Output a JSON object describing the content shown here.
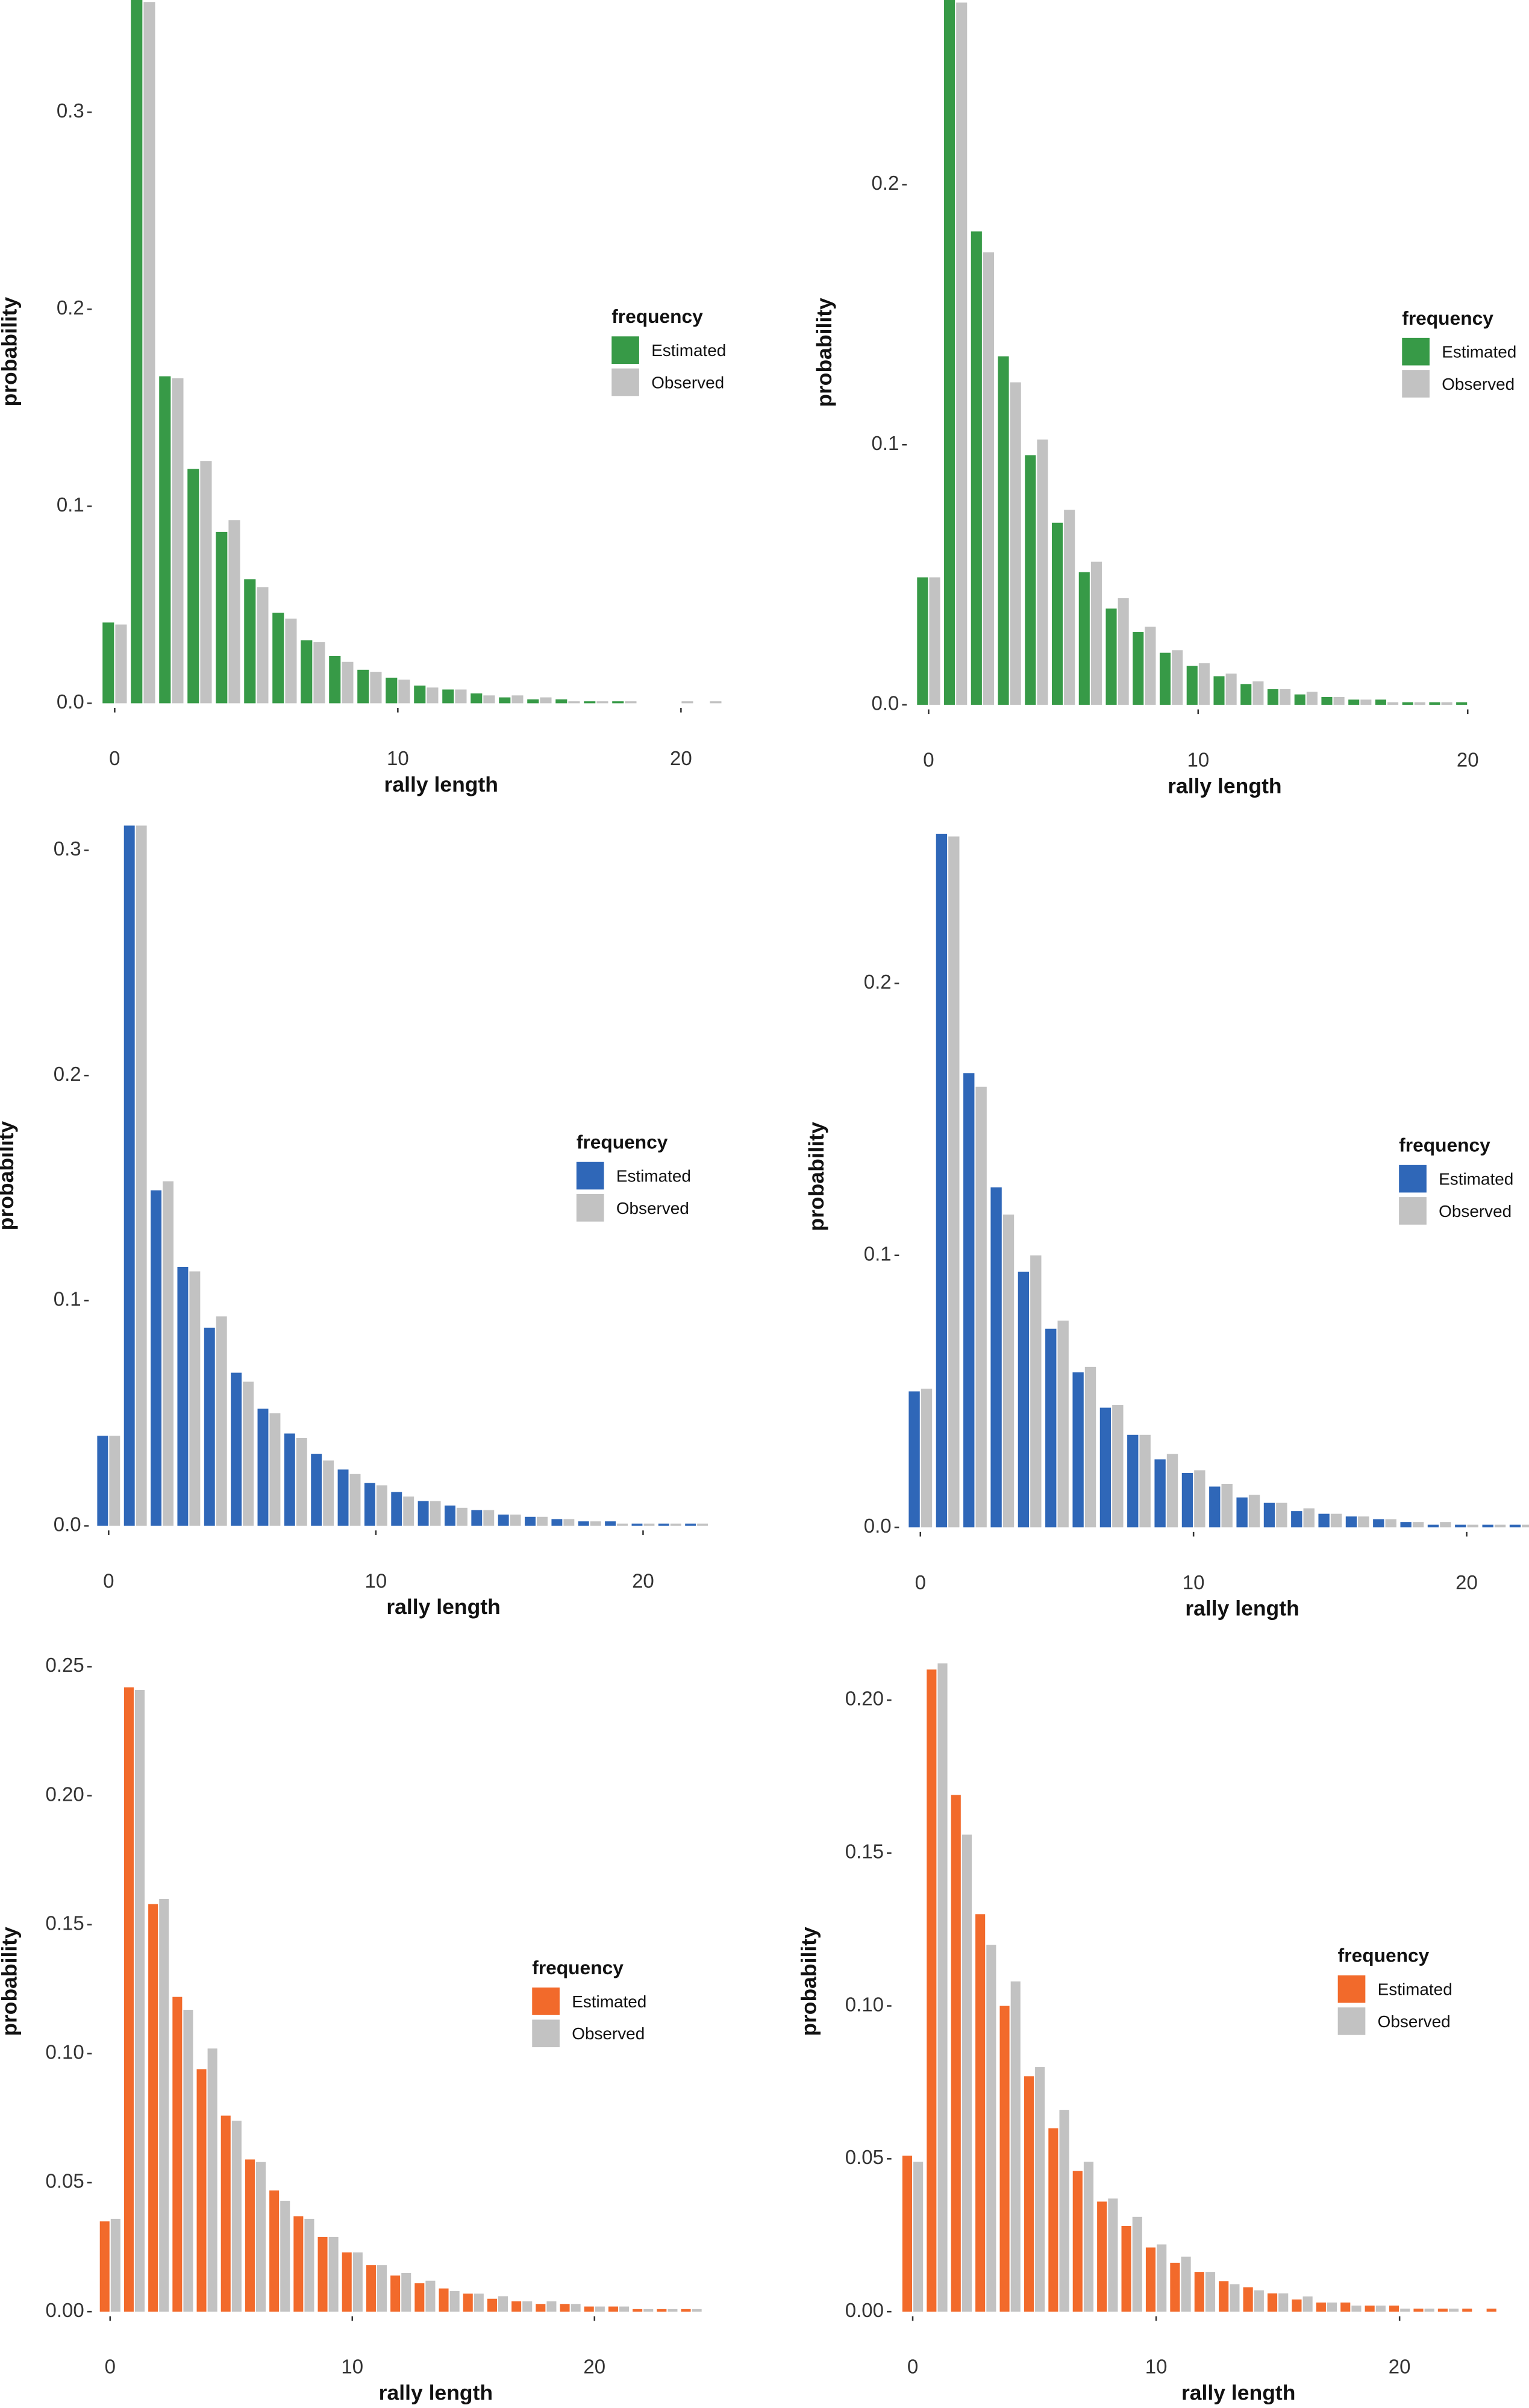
{
  "chart_data": [
    {
      "type": "bar",
      "xlabel": "rally length",
      "ylabel": "probability",
      "legend_title": "frequency",
      "legend": "right",
      "x": [
        0,
        1,
        2,
        3,
        4,
        5,
        6,
        7,
        8,
        9,
        10,
        11,
        12,
        13,
        14,
        15,
        16,
        17,
        18,
        19,
        20,
        21
      ],
      "series": [
        {
          "name": "Estimated",
          "color": "#379a47",
          "values": [
            0.041,
            0.357,
            0.166,
            0.119,
            0.087,
            0.063,
            0.046,
            0.032,
            0.024,
            0.017,
            0.013,
            0.009,
            0.007,
            0.005,
            0.003,
            0.002,
            0.002,
            0.001,
            0.001,
            0.0,
            0.0,
            0.0
          ]
        },
        {
          "name": "Observed",
          "color": "#c2c2c2",
          "values": [
            0.04,
            0.356,
            0.165,
            0.123,
            0.093,
            0.059,
            0.043,
            0.031,
            0.021,
            0.016,
            0.012,
            0.008,
            0.007,
            0.004,
            0.004,
            0.003,
            0.001,
            0.001,
            0.001,
            0.0,
            0.001,
            0.001
          ]
        }
      ],
      "xlim": [
        -0.7,
        21.6
      ],
      "ylim": [
        0,
        0.357
      ],
      "xticks": [
        0,
        10,
        20
      ],
      "yticks": [
        {
          "value": 0,
          "label": "0.0"
        },
        0.1,
        0.2,
        0.3
      ]
    },
    {
      "type": "bar",
      "xlabel": "rally length",
      "ylabel": "probability",
      "legend_title": "frequency",
      "legend": "right",
      "x": [
        0,
        1,
        2,
        3,
        4,
        5,
        6,
        7,
        8,
        9,
        10,
        11,
        12,
        13,
        14,
        15,
        16,
        17,
        18,
        19,
        20
      ],
      "series": [
        {
          "name": "Estimated",
          "color": "#379a47",
          "values": [
            0.049,
            0.271,
            0.182,
            0.134,
            0.096,
            0.07,
            0.051,
            0.037,
            0.028,
            0.02,
            0.015,
            0.011,
            0.008,
            0.006,
            0.004,
            0.003,
            0.002,
            0.002,
            0.001,
            0.001,
            0.001
          ]
        },
        {
          "name": "Observed",
          "color": "#c2c2c2",
          "values": [
            0.049,
            0.27,
            0.174,
            0.124,
            0.102,
            0.075,
            0.055,
            0.041,
            0.03,
            0.021,
            0.016,
            0.012,
            0.009,
            0.006,
            0.005,
            0.003,
            0.002,
            0.001,
            0.001,
            0.001,
            0.0
          ]
        }
      ],
      "xlim": [
        -0.7,
        20.4
      ],
      "ylim": [
        0,
        0.271
      ],
      "xticks": [
        0,
        10,
        20
      ],
      "yticks": [
        {
          "value": 0,
          "label": "0.0"
        },
        0.1,
        0.2
      ]
    },
    {
      "type": "bar",
      "xlabel": "rally length",
      "ylabel": "probability",
      "legend_title": "frequency",
      "legend": "right",
      "x": [
        0,
        1,
        2,
        3,
        4,
        5,
        6,
        7,
        8,
        9,
        10,
        11,
        12,
        13,
        14,
        15,
        16,
        17,
        18,
        19,
        20,
        21,
        22,
        23
      ],
      "series": [
        {
          "name": "Estimated",
          "color": "#2f67b8",
          "values": [
            0.04,
            0.311,
            0.149,
            0.115,
            0.088,
            0.068,
            0.052,
            0.041,
            0.032,
            0.025,
            0.019,
            0.015,
            0.011,
            0.009,
            0.007,
            0.005,
            0.004,
            0.003,
            0.002,
            0.002,
            0.001,
            0.001,
            0.001,
            0.0
          ]
        },
        {
          "name": "Observed",
          "color": "#c2c2c2",
          "values": [
            0.04,
            0.311,
            0.153,
            0.113,
            0.093,
            0.064,
            0.05,
            0.039,
            0.029,
            0.023,
            0.018,
            0.013,
            0.011,
            0.008,
            0.007,
            0.005,
            0.004,
            0.003,
            0.002,
            0.001,
            0.001,
            0.001,
            0.001,
            0.0
          ]
        }
      ],
      "xlim": [
        -0.63,
        23.4
      ],
      "ylim": [
        0,
        0.311
      ],
      "xticks": [
        0,
        10,
        20
      ],
      "yticks": [
        {
          "value": 0,
          "label": "0.0"
        },
        0.1,
        0.2,
        0.3
      ]
    },
    {
      "type": "bar",
      "xlabel": "rally length",
      "ylabel": "probability",
      "legend_title": "frequency",
      "legend": "right",
      "x": [
        0,
        1,
        2,
        3,
        4,
        5,
        6,
        7,
        8,
        9,
        10,
        11,
        12,
        13,
        14,
        15,
        16,
        17,
        18,
        19,
        20,
        21,
        22
      ],
      "series": [
        {
          "name": "Estimated",
          "color": "#2f67b8",
          "values": [
            0.05,
            0.255,
            0.167,
            0.125,
            0.094,
            0.073,
            0.057,
            0.044,
            0.034,
            0.025,
            0.02,
            0.015,
            0.011,
            0.009,
            0.006,
            0.005,
            0.004,
            0.003,
            0.002,
            0.001,
            0.001,
            0.001,
            0.001
          ]
        },
        {
          "name": "Observed",
          "color": "#c2c2c2",
          "values": [
            0.051,
            0.254,
            0.162,
            0.115,
            0.1,
            0.076,
            0.059,
            0.045,
            0.034,
            0.027,
            0.021,
            0.016,
            0.012,
            0.009,
            0.007,
            0.005,
            0.004,
            0.003,
            0.002,
            0.002,
            0.001,
            0.001,
            0.001
          ]
        }
      ],
      "xlim": [
        -0.67,
        22.0
      ],
      "ylim": [
        0,
        0.258
      ],
      "xticks": [
        0,
        10,
        20
      ],
      "yticks": [
        {
          "value": 0,
          "label": "0.0"
        },
        0.1,
        0.2
      ]
    },
    {
      "type": "bar",
      "xlabel": "rally length",
      "ylabel": "probability",
      "legend_title": "frequency",
      "legend": "right",
      "x": [
        0,
        1,
        2,
        3,
        4,
        5,
        6,
        7,
        8,
        9,
        10,
        11,
        12,
        13,
        14,
        15,
        16,
        17,
        18,
        19,
        20,
        21,
        22,
        23,
        24
      ],
      "series": [
        {
          "name": "Estimated",
          "color": "#f26a2b",
          "values": [
            0.035,
            0.242,
            0.158,
            0.122,
            0.094,
            0.076,
            0.059,
            0.047,
            0.037,
            0.029,
            0.023,
            0.018,
            0.014,
            0.011,
            0.009,
            0.007,
            0.005,
            0.004,
            0.003,
            0.003,
            0.002,
            0.002,
            0.001,
            0.001,
            0.001
          ]
        },
        {
          "name": "Observed",
          "color": "#c2c2c2",
          "values": [
            0.036,
            0.241,
            0.16,
            0.117,
            0.102,
            0.074,
            0.058,
            0.043,
            0.036,
            0.029,
            0.023,
            0.018,
            0.015,
            0.012,
            0.008,
            0.007,
            0.006,
            0.004,
            0.004,
            0.003,
            0.002,
            0.002,
            0.001,
            0.001,
            0.001
          ]
        }
      ],
      "xlim": [
        -0.63,
        25.0
      ],
      "ylim": [
        0,
        0.256
      ],
      "xticks": [
        0,
        10,
        20
      ],
      "yticks": [
        {
          "value": 0,
          "label": "0.00"
        },
        0.05,
        {
          "value": 0.1,
          "label": "0.10"
        },
        0.15,
        {
          "value": 0.2,
          "label": "0.20"
        },
        0.25
      ]
    },
    {
      "type": "bar",
      "xlabel": "rally length",
      "ylabel": "probability",
      "legend_title": "frequency",
      "legend": "right",
      "x": [
        0,
        1,
        2,
        3,
        4,
        5,
        6,
        7,
        8,
        9,
        10,
        11,
        12,
        13,
        14,
        15,
        16,
        17,
        18,
        19,
        20,
        21,
        22,
        23,
        24
      ],
      "series": [
        {
          "name": "Estimated",
          "color": "#f26a2b",
          "values": [
            0.051,
            0.21,
            0.169,
            0.13,
            0.1,
            0.077,
            0.06,
            0.046,
            0.036,
            0.028,
            0.021,
            0.016,
            0.013,
            0.01,
            0.008,
            0.006,
            0.004,
            0.003,
            0.003,
            0.002,
            0.002,
            0.001,
            0.001,
            0.001,
            0.001
          ]
        },
        {
          "name": "Observed",
          "color": "#c2c2c2",
          "values": [
            0.049,
            0.212,
            0.156,
            0.12,
            0.108,
            0.08,
            0.066,
            0.049,
            0.037,
            0.031,
            0.022,
            0.018,
            0.013,
            0.009,
            0.007,
            0.006,
            0.005,
            0.003,
            0.002,
            0.002,
            0.001,
            0.001,
            0.001,
            0.0,
            0.0
          ]
        }
      ],
      "xlim": [
        -0.75,
        25.0
      ],
      "ylim": [
        0,
        0.216
      ],
      "xticks": [
        0,
        10,
        20
      ],
      "yticks": [
        {
          "value": 0,
          "label": "0.00"
        },
        0.05,
        {
          "value": 0.1,
          "label": "0.10"
        },
        0.15,
        {
          "value": 0.2,
          "label": "0.20"
        }
      ]
    }
  ]
}
